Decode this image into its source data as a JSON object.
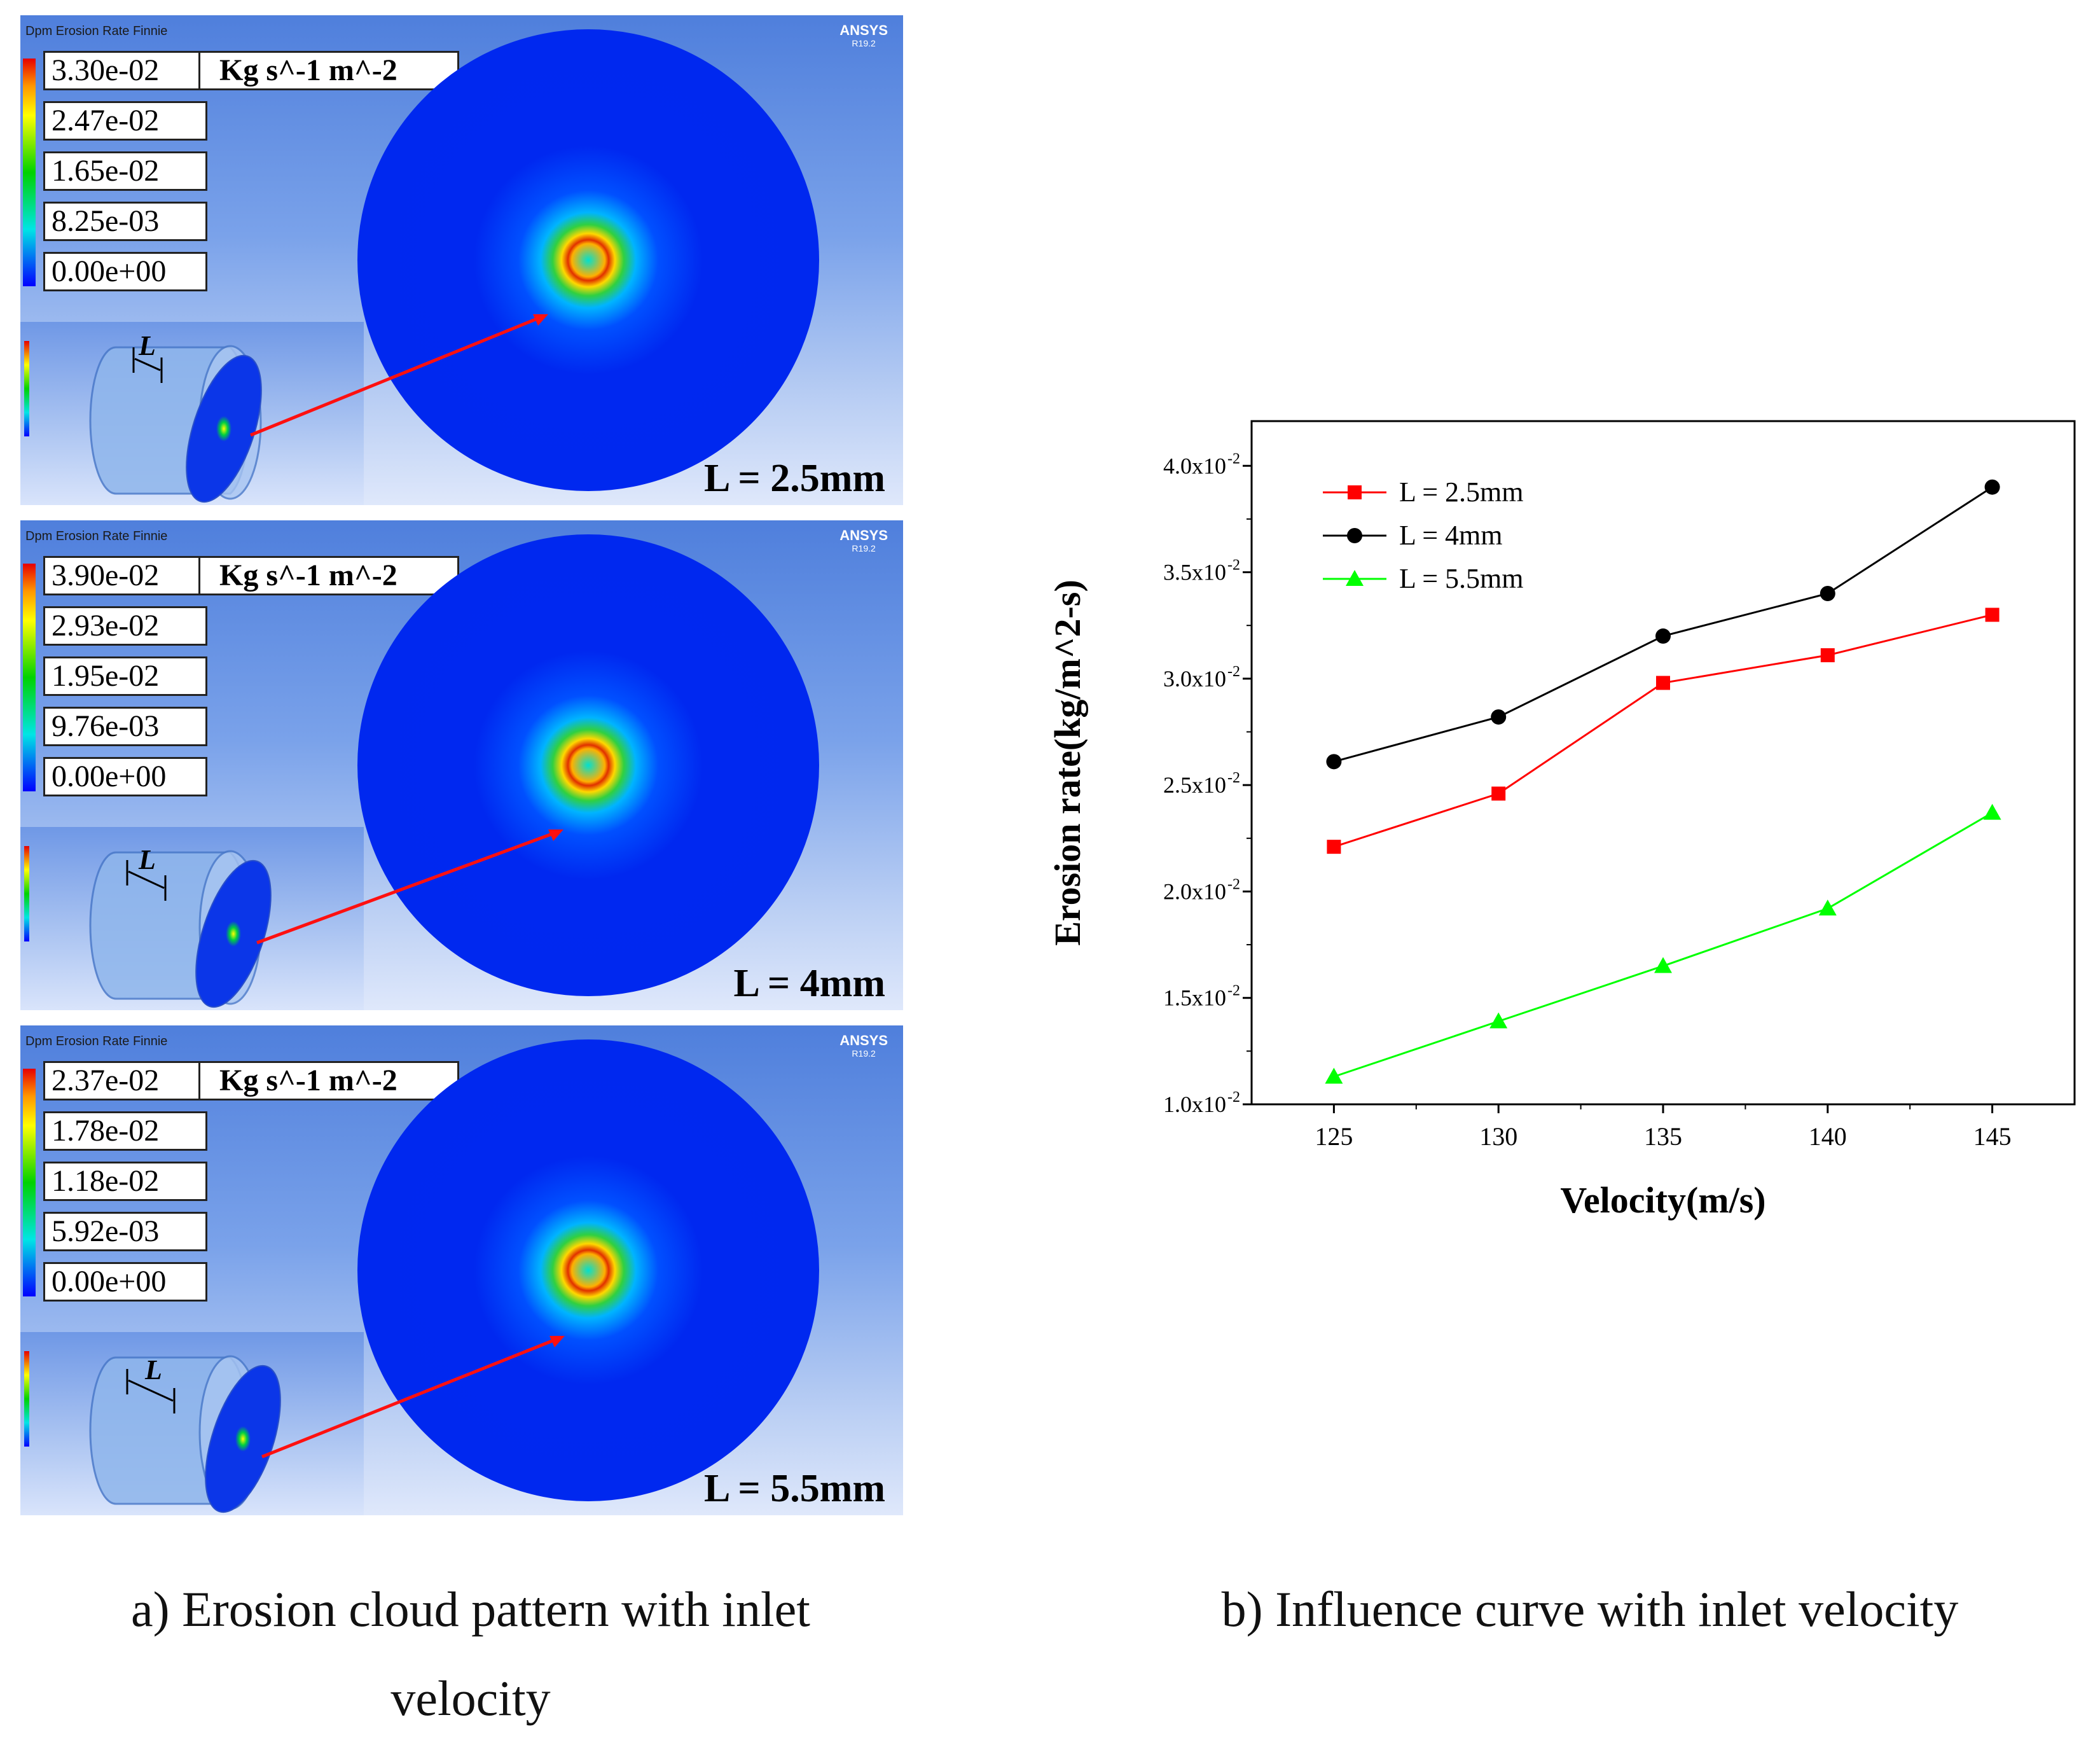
{
  "panels": [
    {
      "header": "Dpm Erosion Rate Finnie",
      "brand": "ANSYS",
      "release": "R19.2",
      "legend_values": [
        "3.30e-02",
        "2.47e-02",
        "1.65e-02",
        "8.25e-03",
        "0.00e+00"
      ],
      "unit": "Kg s^-1 m^-2",
      "inset_axis_label": "L",
      "case_label": "L = 2.5mm"
    },
    {
      "header": "Dpm Erosion Rate Finnie",
      "brand": "ANSYS",
      "release": "R19.2",
      "legend_values": [
        "3.90e-02",
        "2.93e-02",
        "1.95e-02",
        "9.76e-03",
        "0.00e+00"
      ],
      "unit": "Kg s^-1 m^-2",
      "inset_axis_label": "L",
      "case_label": "L = 4mm"
    },
    {
      "header": "Dpm Erosion Rate Finnie",
      "brand": "ANSYS",
      "release": "R19.2",
      "legend_values": [
        "2.37e-02",
        "1.78e-02",
        "1.18e-02",
        "5.92e-03",
        "0.00e+00"
      ],
      "unit": "Kg s^-1 m^-2",
      "inset_axis_label": "L",
      "case_label": "L = 5.5mm"
    }
  ],
  "chart_data": {
    "type": "line",
    "x": [
      125,
      130,
      135,
      140,
      145
    ],
    "xlabel": "Velocity(m/s)",
    "ylabel": "Erosion rate(kg/m^2-s)",
    "xlim": [
      122.5,
      147.5
    ],
    "ylim": [
      0.01,
      0.0421
    ],
    "x_ticks": [
      "125",
      "130",
      "135",
      "140",
      "145"
    ],
    "y_tick_values": [
      0.01,
      0.015,
      0.02,
      0.025,
      0.03,
      0.035,
      0.04
    ],
    "y_tick_mantissas": [
      "1.0x10",
      "1.5x10",
      "2.0x10",
      "2.5x10",
      "3.0x10",
      "3.5x10",
      "4.0x10"
    ],
    "y_tick_exponent": "-2",
    "legend_position": "top-left",
    "series": [
      {
        "name": "L = 2.5mm",
        "color": "#ff0000",
        "marker": "square",
        "values": [
          0.0221,
          0.0246,
          0.0298,
          0.0311,
          0.033
        ]
      },
      {
        "name": "L = 4mm",
        "color": "#000000",
        "marker": "circle",
        "values": [
          0.0261,
          0.0282,
          0.032,
          0.034,
          0.039
        ]
      },
      {
        "name": "L = 5.5mm",
        "color": "#00ff00",
        "marker": "triangle",
        "values": [
          0.0113,
          0.0139,
          0.0165,
          0.0192,
          0.0237
        ]
      }
    ]
  },
  "captions": {
    "a_line1": "a) Erosion cloud pattern with inlet",
    "a_line2": "velocity",
    "b": "b) Influence curve with inlet velocity"
  }
}
